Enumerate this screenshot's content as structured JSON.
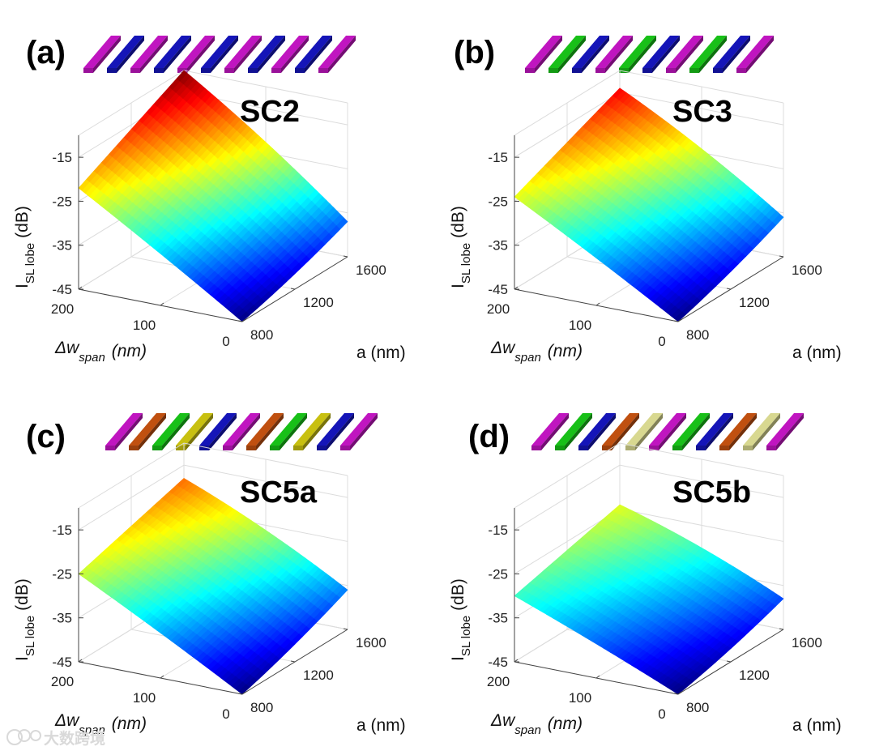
{
  "chart_data": [
    {
      "type": "surface",
      "panel_label": "(a)",
      "title": "SC2",
      "xlabel": {
        "main": "Δw",
        "sub": "span",
        "unit": "(nm)"
      },
      "ylabel": {
        "main": "a (nm)"
      },
      "zlabel": {
        "main": "I",
        "sub": "SL lobe",
        "unit": "(dB)"
      },
      "x_ticks": [
        "200",
        "100",
        "0"
      ],
      "y_ticks": [
        "800",
        "1200",
        "1600"
      ],
      "z_ticks": [
        "-15",
        "-25",
        "-35",
        "-45"
      ],
      "xlim": [
        0,
        200
      ],
      "ylim": [
        800,
        1600
      ],
      "zlim": [
        -45,
        -10
      ],
      "grid": "on",
      "colormap": "jet",
      "corner_values_dB": {
        "x200_a1600": -10,
        "x200_a800": -22,
        "x0_a1600": -37,
        "x0_a800": -45
      },
      "stripe_pattern": [
        "#c015c0",
        "#1515b8",
        "#c015c0",
        "#1515b8",
        "#c015c0",
        "#1515b8",
        "#c015c0",
        "#1515b8",
        "#c015c0",
        "#1515b8",
        "#c015c0"
      ]
    },
    {
      "type": "surface",
      "panel_label": "(b)",
      "title": "SC3",
      "xlabel": {
        "main": "Δw",
        "sub": "span",
        "unit": "(nm)"
      },
      "ylabel": {
        "main": "a (nm)"
      },
      "zlabel": {
        "main": "I",
        "sub": "SL lobe",
        "unit": "(dB)"
      },
      "x_ticks": [
        "200",
        "100",
        "0"
      ],
      "y_ticks": [
        "800",
        "1200",
        "1600"
      ],
      "z_ticks": [
        "-15",
        "-25",
        "-35",
        "-45"
      ],
      "xlim": [
        0,
        200
      ],
      "ylim": [
        800,
        1600
      ],
      "zlim": [
        -45,
        -10
      ],
      "grid": "on",
      "colormap": "jet",
      "corner_values_dB": {
        "x200_a1600": -14,
        "x200_a800": -24,
        "x0_a1600": -36,
        "x0_a800": -45
      },
      "stripe_pattern": [
        "#c015c0",
        "#18c018",
        "#1515b8",
        "#c015c0",
        "#18c018",
        "#1515b8",
        "#c015c0",
        "#18c018",
        "#1515b8",
        "#c015c0"
      ]
    },
    {
      "type": "surface",
      "panel_label": "(c)",
      "title": "SC5a",
      "xlabel": {
        "main": "Δw",
        "sub": "span",
        "unit": "(nm)"
      },
      "ylabel": {
        "main": "a (nm)"
      },
      "zlabel": {
        "main": "I",
        "sub": "SL lobe",
        "unit": "(dB)"
      },
      "x_ticks": [
        "200",
        "100",
        "0"
      ],
      "y_ticks": [
        "800",
        "1200",
        "1600"
      ],
      "z_ticks": [
        "-15",
        "-25",
        "-35",
        "-45"
      ],
      "xlim": [
        0,
        200
      ],
      "ylim": [
        800,
        1600
      ],
      "zlim": [
        -45,
        -10
      ],
      "grid": "on",
      "colormap": "jet",
      "corner_values_dB": {
        "x200_a1600": -18,
        "x200_a800": -25,
        "x0_a1600": -36,
        "x0_a800": -45
      },
      "stripe_pattern": [
        "#c015c0",
        "#c05010",
        "#18c018",
        "#c8c010",
        "#1515b8",
        "#c015c0",
        "#c05010",
        "#18c018",
        "#c8c010",
        "#1515b8",
        "#c015c0"
      ]
    },
    {
      "type": "surface",
      "panel_label": "(d)",
      "title": "SC5b",
      "xlabel": {
        "main": "Δw",
        "sub": "span",
        "unit": "(nm)"
      },
      "ylabel": {
        "main": "a (nm)"
      },
      "zlabel": {
        "main": "I",
        "sub": "SL lobe",
        "unit": "(dB)"
      },
      "x_ticks": [
        "200",
        "100",
        "0"
      ],
      "y_ticks": [
        "800",
        "1200",
        "1600"
      ],
      "z_ticks": [
        "-15",
        "-25",
        "-35",
        "-45"
      ],
      "xlim": [
        0,
        200
      ],
      "ylim": [
        800,
        1600
      ],
      "zlim": [
        -45,
        -10
      ],
      "grid": "on",
      "colormap": "jet",
      "corner_values_dB": {
        "x200_a1600": -24,
        "x200_a800": -30,
        "x0_a1600": -38,
        "x0_a800": -45
      },
      "stripe_pattern": [
        "#c015c0",
        "#18c018",
        "#1515b8",
        "#c05010",
        "#d8d890",
        "#c015c0",
        "#18c018",
        "#1515b8",
        "#c05010",
        "#d8d890",
        "#c015c0"
      ]
    }
  ],
  "watermark": {
    "text": "大数跨境",
    "icon": "watermark-logo-icon"
  }
}
